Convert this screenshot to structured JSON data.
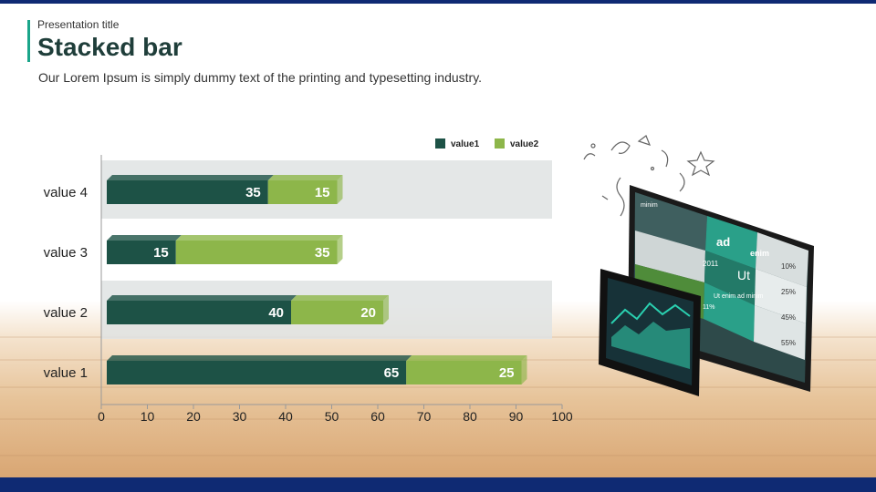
{
  "header": {
    "pretitle": "Presentation title",
    "title": "Stacked bar",
    "subtitle": "Our Lorem Ipsum  is simply dummy  text of the printing and typesetting industry."
  },
  "colors": {
    "value1": "#1d5246",
    "value2": "#8db64a",
    "accent": "#1aa58a",
    "band": "#dfe3e3",
    "bar_blue": "#0f2a73"
  },
  "chart_data": {
    "type": "bar",
    "orientation": "horizontal",
    "stacked": true,
    "categories": [
      "value 4",
      "value 3",
      "value 2",
      "value 1"
    ],
    "series": [
      {
        "name": "value1",
        "values": [
          35,
          15,
          40,
          65
        ]
      },
      {
        "name": "value2",
        "values": [
          15,
          35,
          20,
          25
        ]
      }
    ],
    "xticks": [
      "0",
      "10",
      "20",
      "30",
      "40",
      "50",
      "60",
      "70",
      "80",
      "90",
      "100"
    ],
    "xlim": [
      0,
      100
    ],
    "legend_position": "top-right",
    "grid": false
  },
  "illustration": {
    "screen_label": "minim",
    "screen_ad": "ad",
    "screen_enim": "enim",
    "screen_2011": "2011",
    "screen_ut": "Ut",
    "screen_caption": "Ut enim ad minim",
    "pct1": "10%",
    "pct2": "25%",
    "pct3": "45%",
    "pct4": "55%",
    "pct5": "11%",
    "icons": [
      "monitor-icon",
      "tablet-icon",
      "confetti-icon",
      "star-icon"
    ]
  }
}
